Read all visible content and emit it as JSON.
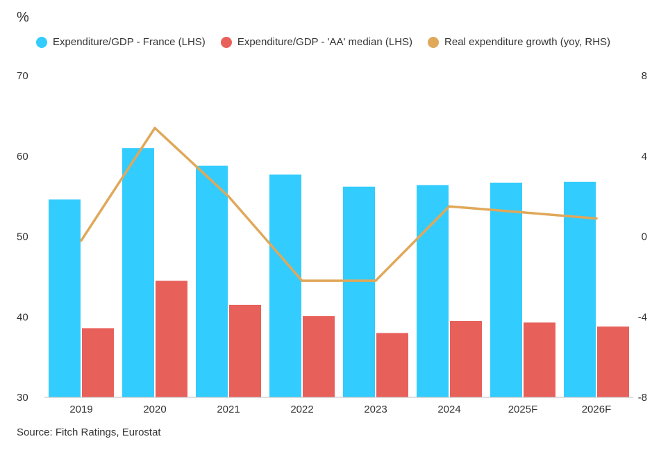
{
  "header": {
    "unit": "%"
  },
  "footer": {
    "source": "Source: Fitch Ratings, Eurostat"
  },
  "chart_data": {
    "type": "bar",
    "categories": [
      "2019",
      "2020",
      "2021",
      "2022",
      "2023",
      "2024",
      "2025F",
      "2026F"
    ],
    "series": [
      {
        "name": "Expenditure/GDP - France (LHS)",
        "type": "bar",
        "axis": "left",
        "color": "#33CCFF",
        "values": [
          54.6,
          61.0,
          58.8,
          57.7,
          56.2,
          56.4,
          56.7,
          56.8
        ]
      },
      {
        "name": "Expenditure/GDP - 'AA' median (LHS)",
        "type": "bar",
        "axis": "left",
        "color": "#E8605A",
        "values": [
          38.6,
          44.5,
          41.5,
          40.1,
          38.0,
          39.5,
          39.3,
          38.8
        ]
      },
      {
        "name": "Real expenditure growth (yoy, RHS)",
        "type": "line",
        "axis": "right",
        "color": "#E0A85A",
        "values": [
          -0.2,
          5.4,
          2.0,
          -2.2,
          -2.2,
          1.5,
          1.2,
          0.9
        ]
      }
    ],
    "y_left": {
      "min": 30,
      "max": 70,
      "ticks": [
        30,
        40,
        50,
        60,
        70
      ]
    },
    "y_right": {
      "min": -8,
      "max": 8,
      "ticks": [
        -8,
        -4,
        0,
        4,
        8
      ]
    },
    "grid": false,
    "legend": "top"
  }
}
